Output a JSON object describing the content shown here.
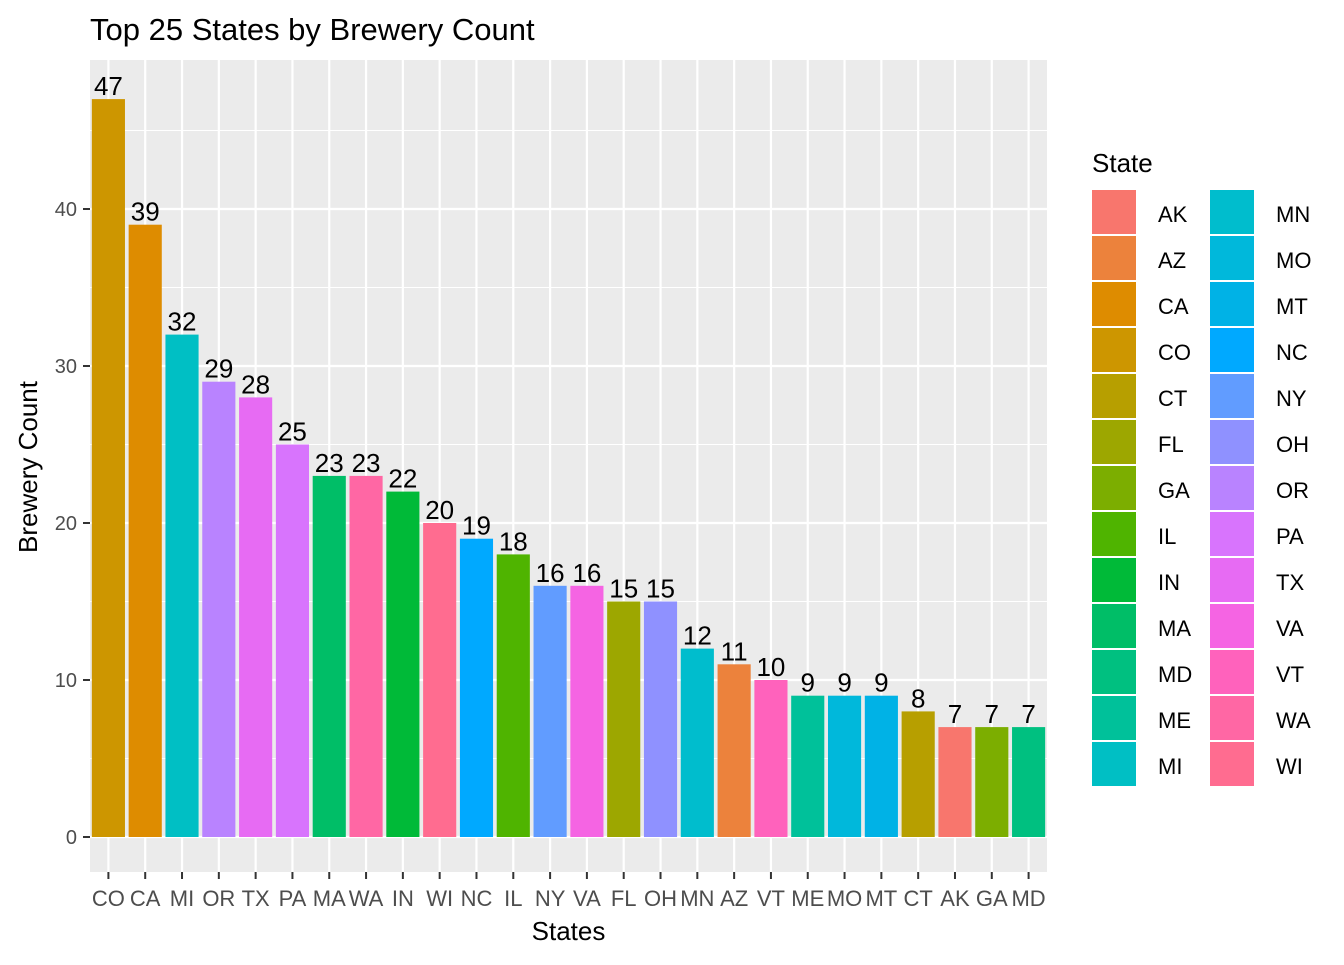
{
  "chart_data": {
    "type": "bar",
    "title": "Top 25 States by Brewery Count",
    "xlabel": "States",
    "ylabel": "Brewery Count",
    "ylim": [
      0,
      49.35
    ],
    "yticks": [
      0,
      10,
      20,
      30,
      40
    ],
    "grid": true,
    "categories": [
      "CO",
      "CA",
      "MI",
      "OR",
      "TX",
      "PA",
      "MA",
      "WA",
      "IN",
      "WI",
      "NC",
      "IL",
      "NY",
      "VA",
      "FL",
      "OH",
      "MN",
      "AZ",
      "VT",
      "ME",
      "MO",
      "MT",
      "CT",
      "AK",
      "GA",
      "MD"
    ],
    "values": [
      47,
      39,
      32,
      29,
      28,
      25,
      23,
      23,
      22,
      20,
      19,
      18,
      16,
      16,
      15,
      15,
      12,
      11,
      10,
      9,
      9,
      9,
      8,
      7,
      7,
      7
    ],
    "legend": {
      "title": "State",
      "placement": "right",
      "entries": [
        {
          "label": "AK",
          "color": "#F8766D"
        },
        {
          "label": "AZ",
          "color": "#EC823C"
        },
        {
          "label": "CA",
          "color": "#DE8C00"
        },
        {
          "label": "CO",
          "color": "#CD9600"
        },
        {
          "label": "CT",
          "color": "#B79F00"
        },
        {
          "label": "FL",
          "color": "#9DA700"
        },
        {
          "label": "GA",
          "color": "#7CAE00"
        },
        {
          "label": "IL",
          "color": "#4FB400"
        },
        {
          "label": "IN",
          "color": "#00BA38"
        },
        {
          "label": "MA",
          "color": "#00BE67"
        },
        {
          "label": "MD",
          "color": "#00C080"
        },
        {
          "label": "ME",
          "color": "#00C19A"
        },
        {
          "label": "MI",
          "color": "#00BFC4"
        },
        {
          "label": "MN",
          "color": "#00BDCD"
        },
        {
          "label": "MO",
          "color": "#00B8DB"
        },
        {
          "label": "MT",
          "color": "#00B2E6"
        },
        {
          "label": "NC",
          "color": "#00A9FF"
        },
        {
          "label": "NY",
          "color": "#619CFF"
        },
        {
          "label": "OH",
          "color": "#8F91FF"
        },
        {
          "label": "OR",
          "color": "#B983FF"
        },
        {
          "label": "PA",
          "color": "#D874FD"
        },
        {
          "label": "TX",
          "color": "#E76BF3"
        },
        {
          "label": "VA",
          "color": "#F564E3"
        },
        {
          "label": "VT",
          "color": "#FF62BC"
        },
        {
          "label": "WA",
          "color": "#FF67A4"
        },
        {
          "label": "WI",
          "color": "#FF6C90"
        }
      ]
    },
    "panel_background": "#EBEBEB",
    "gridline_color": "#FFFFFF"
  }
}
